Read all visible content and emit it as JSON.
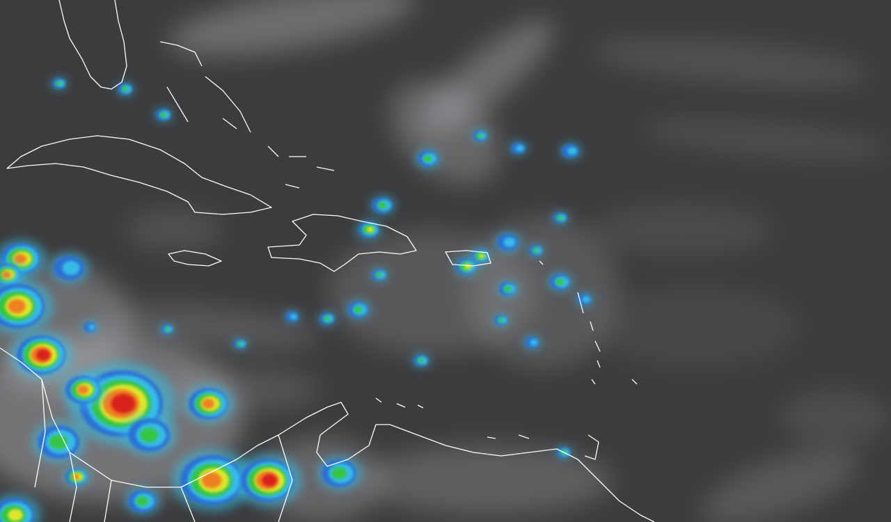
{
  "map": {
    "type": "satellite-infrared-enhanced",
    "layers": [
      "infrared-clouds",
      "convection-enhancement",
      "coastlines"
    ],
    "colors": {
      "background": "#3c3c3e",
      "cloud": "#c8c8cc",
      "coastline": "#ffffff",
      "enhancement_scale": [
        "#2a6fd6",
        "#39c0e8",
        "#35c63a",
        "#e8e82a",
        "#f07a20",
        "#d81e1e"
      ]
    }
  }
}
